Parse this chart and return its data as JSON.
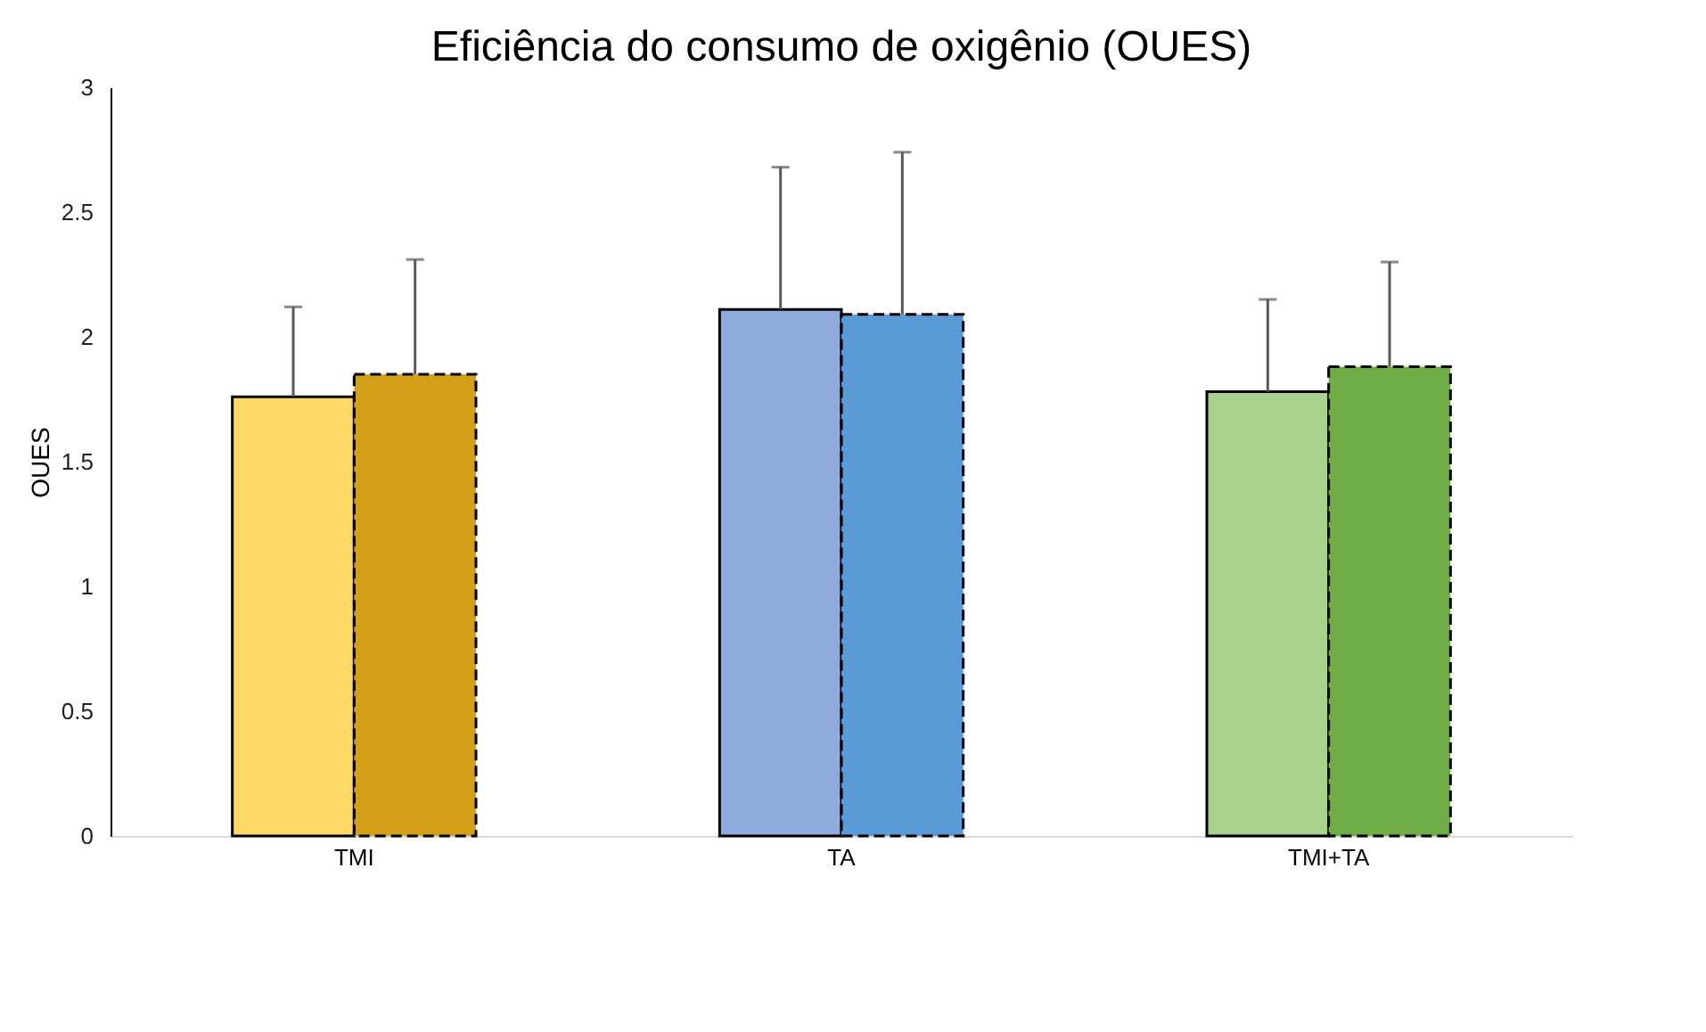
{
  "chart_data": {
    "type": "bar",
    "title": "Eficiência do consumo de oxigênio (OUES)",
    "ylabel": "OUES",
    "categories": [
      "TMI",
      "TA",
      "TMI+TA"
    ],
    "series": [
      {
        "colors": [
          "#ffd966",
          "#8faadc",
          "#a9d18e"
        ],
        "values": [
          1.76,
          2.11,
          1.78
        ],
        "errors": [
          [
            1.76,
            2.12
          ],
          [
            2.11,
            2.68
          ],
          [
            1.78,
            2.15
          ]
        ],
        "line_style": "solid"
      },
      {
        "colors": [
          "#d4a017",
          "#5b9bd5",
          "#70ad47"
        ],
        "values": [
          1.85,
          2.09,
          1.88
        ],
        "errors": [
          [
            1.85,
            2.31
          ],
          [
            2.09,
            2.74
          ],
          [
            1.88,
            2.3
          ]
        ],
        "line_style": "dashed"
      }
    ],
    "ylim": [
      0,
      3
    ],
    "yticks": [
      0,
      0.5,
      1,
      1.5,
      2,
      2.5,
      3
    ],
    "grid": false
  }
}
